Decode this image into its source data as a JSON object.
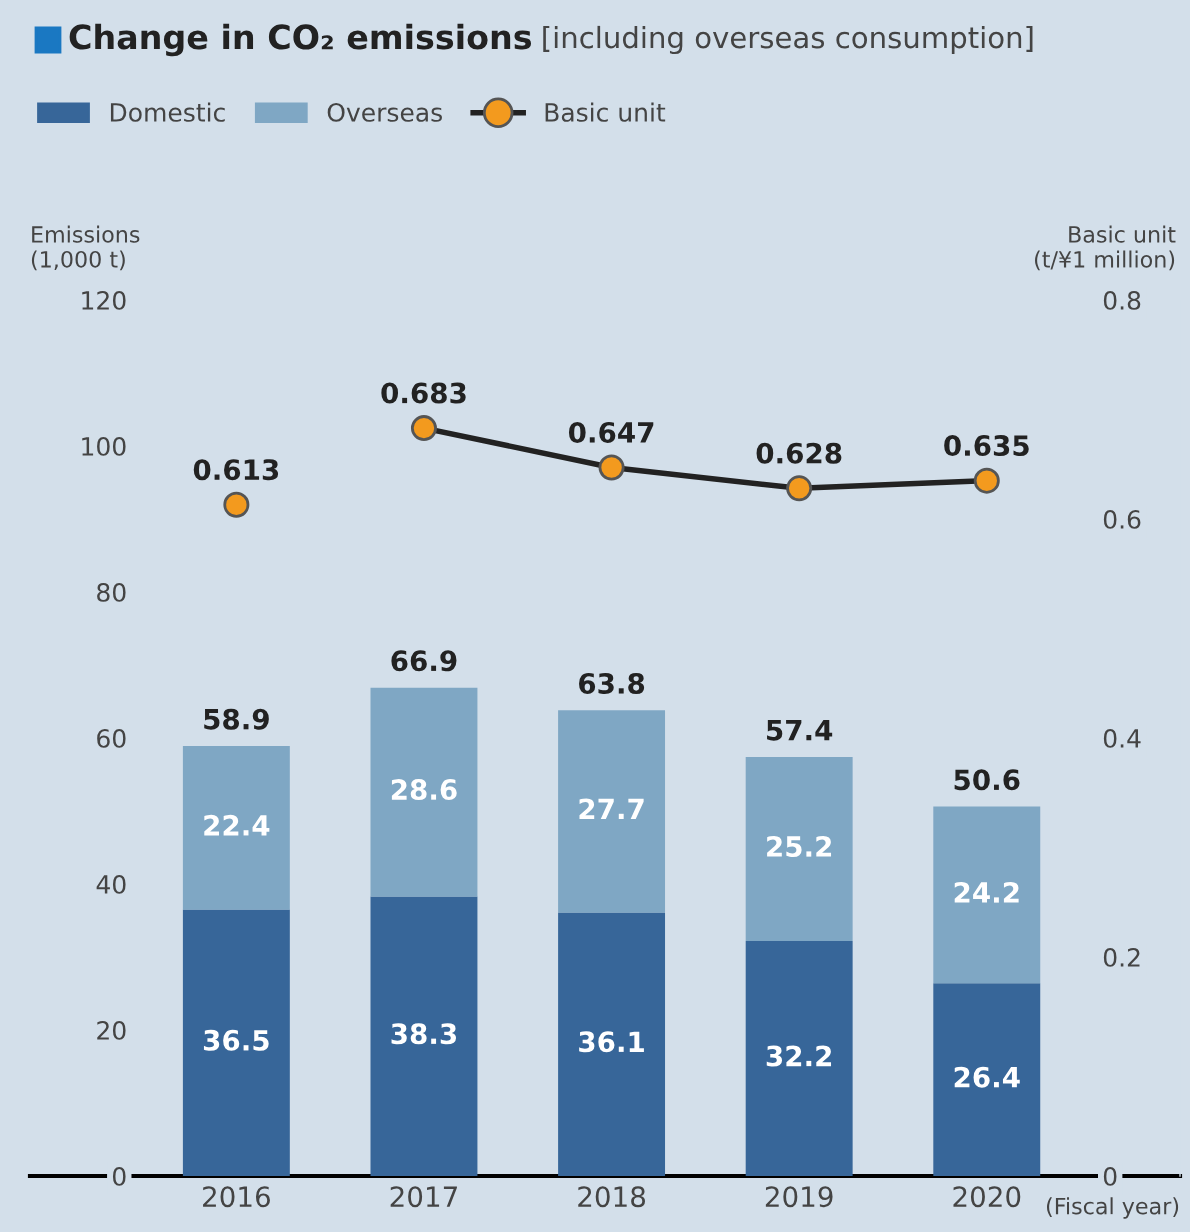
{
  "chart_data": {
    "type": "bar",
    "title": "Change in CO₂ emissions",
    "subtitle": "[including overseas consumption]",
    "ylabel": "Emissions\n(1,000 t)",
    "y2label": "Basic unit\n(t/¥1 million)",
    "xlabel": "(Fiscal year)",
    "categories": [
      "2016",
      "2017",
      "2018",
      "2019",
      "2020"
    ],
    "stacked": true,
    "data_labels": true,
    "legend": "top left",
    "grid": false,
    "ylim": [
      0,
      120
    ],
    "yticks": [
      0,
      20,
      40,
      60,
      80,
      100,
      120
    ],
    "y2lim": [
      0,
      0.8
    ],
    "y2ticks": [
      0,
      0.2,
      0.4,
      0.6,
      0.8
    ],
    "totals": [
      "58.9",
      "66.9",
      "63.8",
      "57.4",
      "50.6"
    ],
    "series": [
      {
        "name": "Domestic",
        "type": "bar",
        "color": "#376699",
        "values": [
          36.5,
          38.3,
          36.1,
          32.2,
          26.4
        ]
      },
      {
        "name": "Overseas",
        "type": "bar",
        "color": "#7fa7c4",
        "values": [
          22.4,
          28.6,
          27.7,
          25.2,
          24.2
        ]
      },
      {
        "name": "Basic unit",
        "type": "line",
        "axis": "y2",
        "color": "#f39a1e",
        "marker": "circle",
        "values": [
          null,
          0.683,
          0.647,
          0.628,
          0.635
        ]
      },
      {
        "type": "scatter",
        "axis": "y2",
        "color": "#f39a1e",
        "marker": "circle",
        "values": [
          0.613,
          null,
          null,
          null,
          null
        ]
      }
    ]
  }
}
